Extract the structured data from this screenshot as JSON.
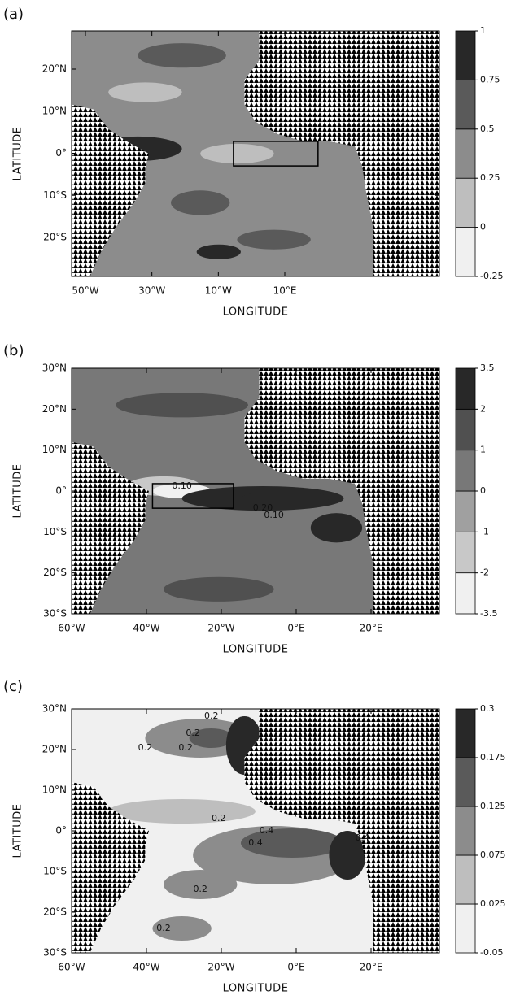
{
  "panels": [
    {
      "label": "(a)",
      "y_label": "LATITUDE",
      "x_label": "LONGITUDE",
      "y_ticks": [
        "20°N",
        "10°N",
        "0°",
        "10°S",
        "20°S"
      ],
      "x_ticks": [
        "50°W",
        "30°W",
        "10°W",
        "10°E"
      ],
      "colorbar": [
        -0.25,
        0,
        0.25,
        0.5,
        0.75,
        1
      ]
    },
    {
      "label": "(b)",
      "y_label": "LATITUDE",
      "x_label": "LONGITUDE",
      "y_ticks": [
        "30°N",
        "20°N",
        "10°N",
        "0°",
        "10°S",
        "20°S",
        "30°S"
      ],
      "x_ticks": [
        "60°W",
        "40°W",
        "20°W",
        "0°E",
        "20°E"
      ],
      "colorbar": [
        -3.5,
        -2,
        -1,
        0,
        1,
        2,
        3.5
      ],
      "contour_labels": [
        "0.10",
        "0.20",
        "0.10"
      ]
    },
    {
      "label": "(c)",
      "y_label": "LATITUDE",
      "x_label": "LONGITUDE",
      "y_ticks": [
        "30°N",
        "20°N",
        "10°N",
        "0°",
        "10°S",
        "20°S",
        "30°S"
      ],
      "x_ticks": [
        "60°W",
        "40°W",
        "20°W",
        "0°E",
        "20°E"
      ],
      "colorbar": [
        -0.05,
        0.025,
        0.075,
        0.125,
        0.175,
        0.3
      ],
      "contour_labels": [
        "0.2",
        "0.2",
        "0.2",
        "0.2",
        "0.2",
        "0.4",
        "0.4",
        "0.4",
        "0.2",
        "0.2"
      ]
    }
  ]
}
